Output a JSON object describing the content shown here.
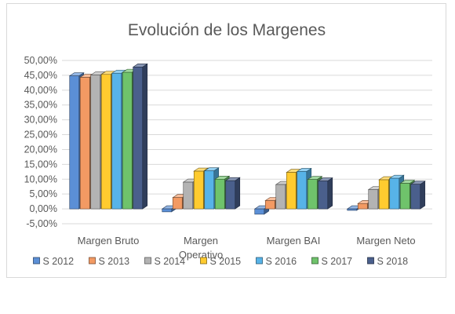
{
  "chart_data": {
    "type": "bar",
    "title": "Evolución de los Margenes",
    "xlabel": "",
    "ylabel": "",
    "categories": [
      [
        "Margen Bruto"
      ],
      [
        "Margen",
        "Operativo"
      ],
      [
        "Margen BAI"
      ],
      [
        "Margen Neto"
      ]
    ],
    "y_ticks": [
      "-5,00%",
      "0,00%",
      "5,00%",
      "10,00%",
      "15,00%",
      "20,00%",
      "25,00%",
      "30,00%",
      "35,00%",
      "40,00%",
      "45,00%",
      "50,00%"
    ],
    "ylim": [
      -5,
      50
    ],
    "grid": true,
    "legend_position": "bottom",
    "series": [
      {
        "name": "S 2012",
        "color": "#5b8fd6",
        "values": [
          44.8,
          -1.0,
          -1.8,
          -0.5
        ]
      },
      {
        "name": "S 2013",
        "color": "#f39a63",
        "values": [
          44.3,
          3.8,
          2.8,
          1.8
        ]
      },
      {
        "name": "S 2014",
        "color": "#b3b3b3",
        "values": [
          45.1,
          9.0,
          8.2,
          6.5
        ]
      },
      {
        "name": "S 2015",
        "color": "#ffcb2f",
        "values": [
          45.3,
          12.7,
          12.3,
          9.8
        ]
      },
      {
        "name": "S 2016",
        "color": "#57b3e8",
        "values": [
          45.7,
          12.8,
          12.6,
          10.3
        ]
      },
      {
        "name": "S 2017",
        "color": "#6fc36b",
        "values": [
          46.0,
          10.0,
          9.9,
          8.6
        ]
      },
      {
        "name": "S 2018",
        "color": "#4a5f8c",
        "values": [
          47.8,
          9.5,
          9.4,
          8.3
        ]
      }
    ]
  }
}
